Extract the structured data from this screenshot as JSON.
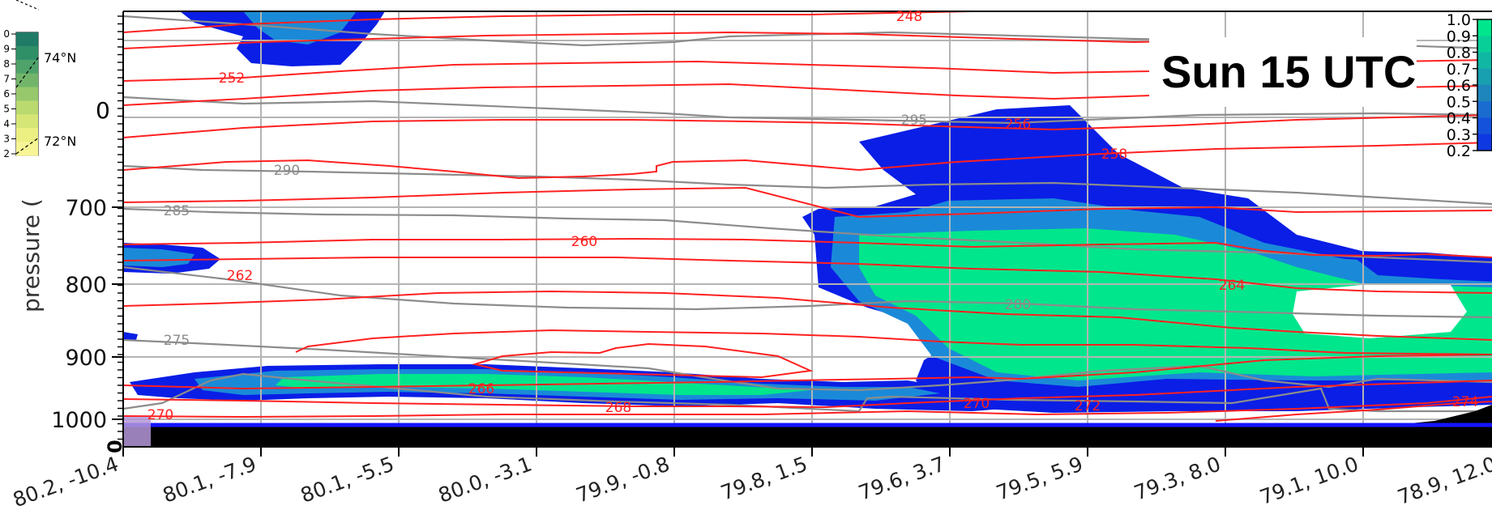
{
  "title_overlay": "Sun 15 UTC",
  "colors": {
    "cloud_low": "#0a1ee6",
    "cloud_mid": "#1a8ad8",
    "cloud_high": "#00e68c",
    "temperature_contour": "#ff2020",
    "theta_contour": "#8c8c8c",
    "ground": "#000000",
    "surface_line": "#1414ff",
    "grid": "#b4b4b4"
  },
  "chart_data": [
    {
      "type": "contour",
      "ylabel": "pressure (",
      "yaxis": {
        "scale": "linear",
        "inverted": true,
        "ticks": [
          "700",
          "800",
          "900",
          "1000"
        ]
      },
      "x_tick_labels": [
        "80.2, -10.4",
        "80.1, -7.9",
        "80.1, -5.5",
        "80.0, -3.1",
        "79.9, -0.8",
        "79.8, 1.5",
        "79.6, 3.7",
        "79.5, 5.9",
        "79.3, 8.0",
        "79.1, 10.0",
        "78.9, 12.0"
      ],
      "grid": true,
      "cloud_fraction_field": {
        "levels": [
          0.2,
          0.3,
          0.4,
          0.5,
          0.6,
          0.7,
          0.8,
          0.9,
          1.0
        ],
        "colorbar_ticks": [
          "1.0",
          "0.9",
          "0.8",
          "0.7",
          "0.6",
          "0.5",
          "0.4",
          "0.3",
          "0.2"
        ]
      },
      "temperature_contour_labels": [
        "248",
        "252",
        "256",
        "258",
        "260",
        "262",
        "264",
        "266",
        "268",
        "270",
        "270",
        "272",
        "274"
      ],
      "theta_contour_labels": [
        "295",
        "290",
        "285",
        "280",
        "275"
      ]
    },
    {
      "type": "map-inset",
      "latitude_labels": [
        "74°N",
        "72°N"
      ],
      "colorbar_ticks": [
        "0",
        "9",
        "8",
        "7",
        "6",
        "5",
        "4",
        "3",
        "2"
      ]
    }
  ],
  "partial_labels": {
    "bottom_left": "0",
    "top_left": "0"
  }
}
